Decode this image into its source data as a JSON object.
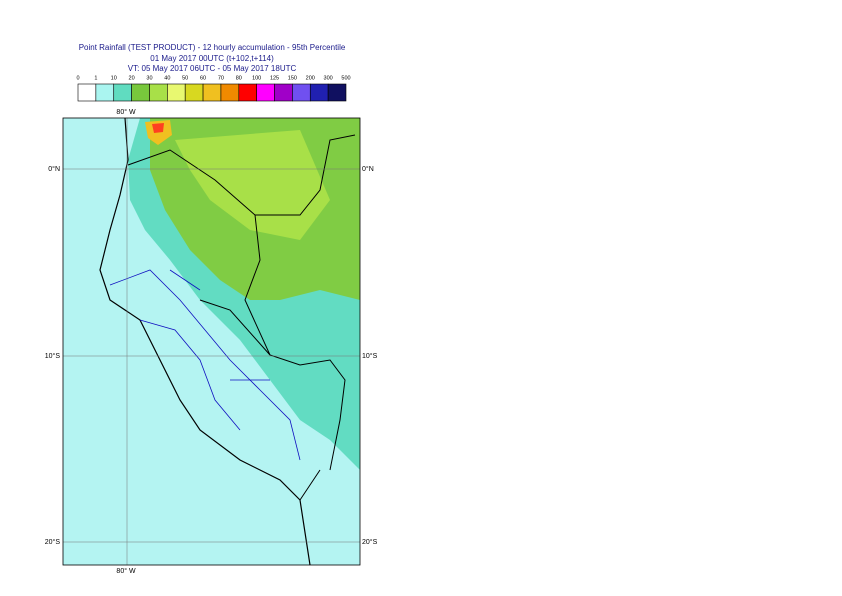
{
  "header": {
    "title": "Point Rainfall (TEST PRODUCT) - 12 hourly accumulation - 95th Percentile",
    "base": "01 May 2017 00UTC (t+102,t+114)",
    "valid": "VT: 05 May 2017 06UTC - 05 May 2017 18UTC"
  },
  "legend": {
    "ticks": [
      0,
      1,
      10,
      20,
      30,
      40,
      50,
      60,
      70,
      80,
      100,
      125,
      150,
      200,
      300,
      500
    ],
    "colors": [
      "#ffffff",
      "#aaf5f0",
      "#60dcc0",
      "#78c83c",
      "#a8e048",
      "#e8f870",
      "#d8d820",
      "#f0c020",
      "#f08a00",
      "#ff0000",
      "#ff00ff",
      "#a000c8",
      "#7050f0",
      "#2020b0",
      "#101060"
    ]
  },
  "map": {
    "lon_top": "80° W",
    "lon_bottom": "80° W",
    "lat_0_left": "0°N",
    "lat_0_right": "0°N",
    "lat_10_left": "10°S",
    "lat_10_right": "10°S",
    "lat_20_left": "20°S",
    "lat_20_right": "20°S"
  }
}
